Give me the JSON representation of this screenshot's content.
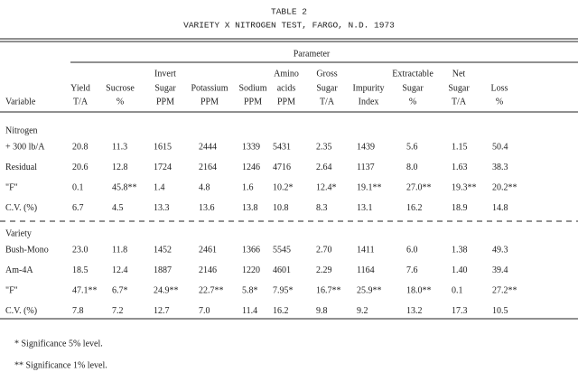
{
  "title": "TABLE 2",
  "subtitle": "VARIETY X NITROGEN TEST, FARGO, N.D.  1973",
  "parameter_label": "Parameter",
  "variable_label": "Variable",
  "columns": [
    {
      "lines": [
        "Yield",
        "T/A"
      ]
    },
    {
      "lines": [
        "Sucrose",
        "%"
      ]
    },
    {
      "lines": [
        "Invert",
        "Sugar",
        "PPM"
      ]
    },
    {
      "lines": [
        "Potassium",
        "PPM"
      ]
    },
    {
      "lines": [
        "Sodium",
        "PPM"
      ]
    },
    {
      "lines": [
        "Amino",
        "acids",
        "PPM"
      ]
    },
    {
      "lines": [
        "Gross",
        "Sugar",
        "T/A"
      ]
    },
    {
      "lines": [
        "Impurity",
        "Index"
      ]
    },
    {
      "lines": [
        "Extractable",
        "Sugar",
        "%"
      ]
    },
    {
      "lines": [
        "Net",
        "Sugar",
        "T/A"
      ]
    },
    {
      "lines": [
        "Loss",
        "%"
      ]
    }
  ],
  "sections": [
    {
      "label": "Nitrogen",
      "rows": [
        {
          "label": "+ 300 lb/A",
          "values": [
            "20.8",
            "11.3",
            "1615",
            "2444",
            "1339",
            "5431",
            "2.35",
            "1439",
            "5.6",
            "1.15",
            "50.4"
          ]
        },
        {
          "label": "Residual",
          "values": [
            "20.6",
            "12.8",
            "1724",
            "2164",
            "1246",
            "4716",
            "2.64",
            "1137",
            "8.0",
            "1.63",
            "38.3"
          ]
        },
        {
          "label": "\"F\"",
          "values": [
            "0.1",
            "45.8**",
            "1.4",
            "4.8",
            "1.6",
            "10.2*",
            "12.4*",
            "19.1**",
            "27.0**",
            "19.3**",
            "20.2**"
          ]
        },
        {
          "label": "C.V. (%)",
          "values": [
            "6.7",
            "4.5",
            "13.3",
            "13.6",
            "13.8",
            "10.8",
            "8.3",
            "13.1",
            "16.2",
            "18.9",
            "14.8"
          ]
        }
      ]
    },
    {
      "label": "Variety",
      "rows": [
        {
          "label": "Bush-Mono",
          "values": [
            "23.0",
            "11.8",
            "1452",
            "2461",
            "1366",
            "5545",
            "2.70",
            "1411",
            "6.0",
            "1.38",
            "49.3"
          ]
        },
        {
          "label": "Am-4A",
          "values": [
            "18.5",
            "12.4",
            "1887",
            "2146",
            "1220",
            "4601",
            "2.29",
            "1164",
            "7.6",
            "1.40",
            "39.4"
          ]
        },
        {
          "label": "\"F\"",
          "values": [
            "47.1**",
            "6.7*",
            "24.9**",
            "22.7**",
            "5.8*",
            "7.95*",
            "16.7**",
            "25.9**",
            "18.0**",
            "0.1",
            "27.2**"
          ]
        },
        {
          "label": "C.V. (%)",
          "values": [
            "7.8",
            "7.2",
            "12.7",
            "7.0",
            "11.4",
            "16.2",
            "9.8",
            "9.2",
            "13.2",
            "17.3",
            "10.5"
          ]
        }
      ]
    }
  ],
  "footnotes": [
    "*  Significance 5% level.",
    "** Significance 1% level."
  ]
}
